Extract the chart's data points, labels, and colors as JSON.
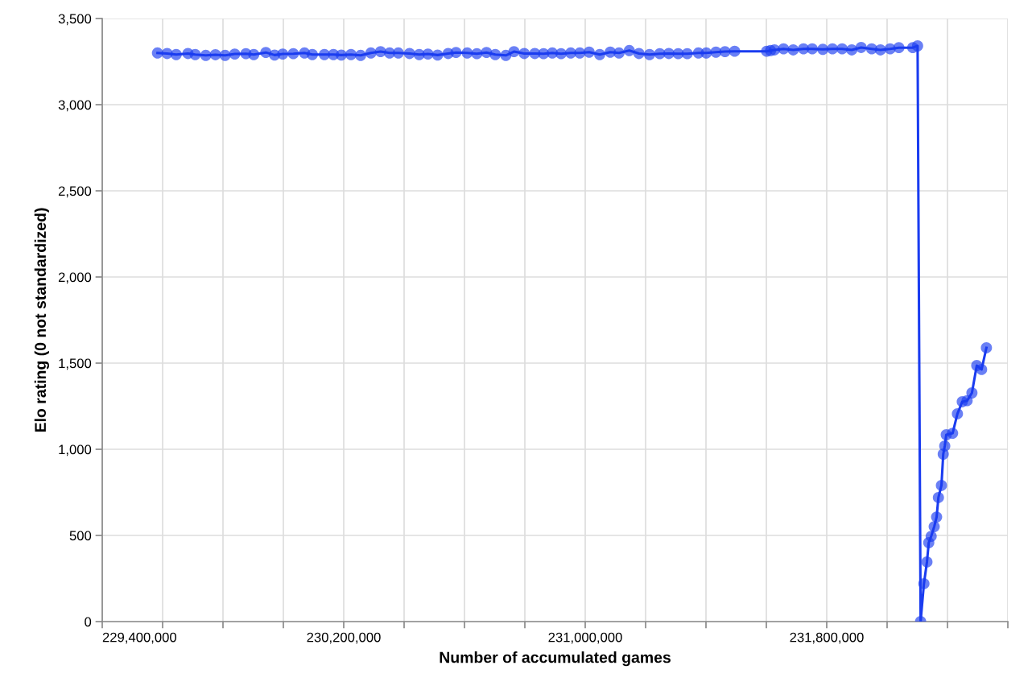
{
  "chart_data": {
    "type": "line",
    "xlabel": "Number of accumulated games",
    "ylabel": "Elo rating (0 not standardized)",
    "marker": "circle",
    "line_style": "solid",
    "grid": true,
    "xlim": [
      229400000,
      232400000
    ],
    "xticks": [
      {
        "value": 229400000,
        "label": "229,400,000"
      },
      {
        "value": 229600000,
        "label": null
      },
      {
        "value": 229800000,
        "label": null
      },
      {
        "value": 230000000,
        "label": null
      },
      {
        "value": 230200000,
        "label": "230,200,000"
      },
      {
        "value": 230400000,
        "label": null
      },
      {
        "value": 230600000,
        "label": null
      },
      {
        "value": 230800000,
        "label": null
      },
      {
        "value": 231000000,
        "label": "231,000,000"
      },
      {
        "value": 231200000,
        "label": null
      },
      {
        "value": 231400000,
        "label": null
      },
      {
        "value": 231600000,
        "label": null
      },
      {
        "value": 231800000,
        "label": "231,800,000"
      },
      {
        "value": 232000000,
        "label": null
      },
      {
        "value": 232200000,
        "label": null
      },
      {
        "value": 232400000,
        "label": null
      }
    ],
    "ylim": [
      0,
      3500
    ],
    "yticks": [
      0,
      500,
      {
        "value": 1000,
        "label": "1,000"
      },
      {
        "value": 1500,
        "label": "1,500"
      },
      {
        "value": 2000,
        "label": "2,000"
      },
      {
        "value": 2500,
        "label": "2,500"
      },
      {
        "value": 3000,
        "label": "3,000"
      },
      {
        "value": 3500,
        "label": "3,500"
      }
    ],
    "series": [
      {
        "color": "#1a3cf0",
        "x": [
          229583000,
          229615000,
          229645000,
          229684000,
          229708000,
          229743000,
          229775000,
          229807000,
          229839000,
          229876000,
          229902000,
          229942000,
          229971000,
          229998000,
          230033000,
          230070000,
          230096000,
          230136000,
          230166000,
          230192000,
          230224000,
          230256000,
          230290000,
          230322000,
          230352000,
          230381000,
          230418000,
          230450000,
          230479000,
          230511000,
          230546000,
          230572000,
          230609000,
          230641000,
          230673000,
          230702000,
          230737000,
          230764000,
          230798000,
          230833000,
          230862000,
          230891000,
          230920000,
          230952000,
          230982000,
          231013000,
          231048000,
          231083000,
          231112000,
          231146000,
          231178000,
          231213000,
          231247000,
          231277000,
          231308000,
          231338000,
          231375000,
          231401000,
          231433000,
          231463000,
          231495000,
          231601000,
          231614000,
          231627000,
          231657000,
          231689000,
          231723000,
          231752000,
          231787000,
          231819000,
          231851000,
          231883000,
          231914000,
          231949000,
          231978000,
          232010000,
          232039000,
          232085000,
          232101000,
          232111000,
          232122000,
          232132000,
          232138000,
          232146000,
          232156000,
          232164000,
          232170000,
          232180000,
          232186000,
          232191000,
          232196000,
          232217000,
          232233000,
          232249000,
          232265000,
          232281000,
          232297000,
          232313000,
          232329000
        ],
        "values": [
          3300,
          3297,
          3291,
          3297,
          3291,
          3286,
          3290,
          3286,
          3294,
          3296,
          3291,
          3303,
          3288,
          3294,
          3296,
          3300,
          3291,
          3291,
          3291,
          3288,
          3291,
          3286,
          3300,
          3308,
          3300,
          3300,
          3297,
          3291,
          3294,
          3288,
          3297,
          3303,
          3300,
          3296,
          3303,
          3291,
          3286,
          3308,
          3297,
          3297,
          3296,
          3300,
          3296,
          3300,
          3300,
          3305,
          3291,
          3305,
          3300,
          3314,
          3297,
          3291,
          3296,
          3297,
          3296,
          3296,
          3300,
          3300,
          3305,
          3308,
          3310,
          3310,
          3314,
          3318,
          3324,
          3318,
          3324,
          3324,
          3321,
          3324,
          3324,
          3318,
          3332,
          3324,
          3318,
          3324,
          3331,
          3331,
          3341,
          0,
          220,
          346,
          458,
          495,
          551,
          607,
          720,
          790,
          972,
          1019,
          1084,
          1093,
          1206,
          1276,
          1282,
          1327,
          1486,
          1463,
          1589
        ]
      }
    ]
  }
}
